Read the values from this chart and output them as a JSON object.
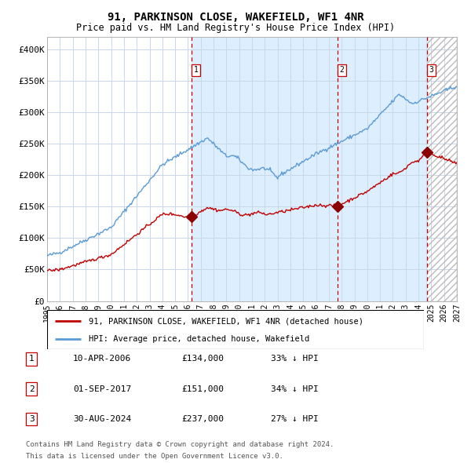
{
  "title": "91, PARKINSON CLOSE, WAKEFIELD, WF1 4NR",
  "subtitle": "Price paid vs. HM Land Registry's House Price Index (HPI)",
  "legend_line1": "91, PARKINSON CLOSE, WAKEFIELD, WF1 4NR (detached house)",
  "legend_line2": "HPI: Average price, detached house, Wakefield",
  "transactions": [
    {
      "id": 1,
      "date": "10-APR-2006",
      "price": 134000,
      "year": 2006.28,
      "label": "33% ↓ HPI"
    },
    {
      "id": 2,
      "date": "01-SEP-2017",
      "price": 151000,
      "year": 2017.67,
      "label": "34% ↓ HPI"
    },
    {
      "id": 3,
      "date": "30-AUG-2024",
      "price": 237000,
      "year": 2024.66,
      "label": "27% ↓ HPI"
    }
  ],
  "footnote1": "Contains HM Land Registry data © Crown copyright and database right 2024.",
  "footnote2": "This data is licensed under the Open Government Licence v3.0.",
  "hpi_color": "#5b9bd5",
  "price_color": "#c00000",
  "marker_color": "#8b0000",
  "dashed_line_color": "#cc0000",
  "shading_color": "#ddeeff",
  "grid_color": "#c8d8e8",
  "background_color": "#ffffff",
  "ylim": [
    0,
    420000
  ],
  "xlim_start": 1995.0,
  "xlim_end": 2027.0
}
